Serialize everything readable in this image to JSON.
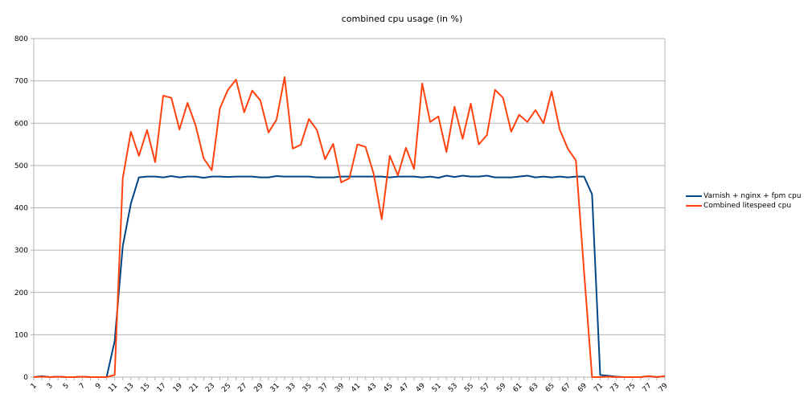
{
  "chart_data": {
    "type": "line",
    "title": "combined cpu usage (in %)",
    "xlabel": "",
    "ylabel": "",
    "ylim": [
      0,
      800
    ],
    "yticks": [
      0,
      100,
      200,
      300,
      400,
      500,
      600,
      700,
      800
    ],
    "grid": true,
    "legend_position": "right",
    "x": [
      1,
      2,
      3,
      4,
      5,
      6,
      7,
      8,
      9,
      10,
      11,
      12,
      13,
      14,
      15,
      16,
      17,
      18,
      19,
      20,
      21,
      22,
      23,
      24,
      25,
      26,
      27,
      28,
      29,
      30,
      31,
      32,
      33,
      34,
      35,
      36,
      37,
      38,
      39,
      40,
      41,
      42,
      43,
      44,
      45,
      46,
      47,
      48,
      49,
      50,
      51,
      52,
      53,
      54,
      55,
      56,
      57,
      58,
      59,
      60,
      61,
      62,
      63,
      64,
      65,
      66,
      67,
      68,
      69,
      70,
      71,
      72,
      73,
      74,
      75,
      76,
      77,
      78,
      79
    ],
    "xtick_labels": [
      "1",
      "3",
      "5",
      "7",
      "9",
      "11",
      "13",
      "15",
      "17",
      "19",
      "21",
      "23",
      "25",
      "27",
      "29",
      "31",
      "33",
      "35",
      "37",
      "39",
      "41",
      "43",
      "45",
      "47",
      "49",
      "51",
      "53",
      "55",
      "57",
      "59",
      "61",
      "63",
      "65",
      "67",
      "69",
      "71",
      "73",
      "75",
      "77",
      "79"
    ],
    "series": [
      {
        "name": "Varnish + nginx + fpm cpu",
        "color": "#004586",
        "values": [
          0,
          2,
          0,
          1,
          0,
          0,
          1,
          0,
          0,
          0,
          85,
          310,
          410,
          472,
          474,
          474,
          472,
          475,
          472,
          474,
          474,
          471,
          474,
          474,
          473,
          474,
          474,
          474,
          472,
          472,
          475,
          474,
          474,
          474,
          474,
          472,
          472,
          472,
          474,
          474,
          474,
          474,
          474,
          474,
          472,
          474,
          474,
          474,
          472,
          474,
          471,
          476,
          473,
          476,
          474,
          474,
          476,
          472,
          472,
          472,
          474,
          476,
          472,
          474,
          472,
          474,
          472,
          474,
          474,
          432,
          5,
          3,
          1,
          0,
          0,
          0,
          2,
          0,
          2
        ]
      },
      {
        "name": "Combined litespeed cpu",
        "color": "#ff420e",
        "values": [
          0,
          1,
          0,
          1,
          0,
          0,
          1,
          0,
          0,
          0,
          5,
          470,
          580,
          523,
          584,
          508,
          665,
          660,
          585,
          648,
          595,
          517,
          489,
          635,
          679,
          703,
          626,
          677,
          654,
          578,
          608,
          709,
          540,
          549,
          610,
          584,
          515,
          551,
          460,
          470,
          550,
          544,
          481,
          373,
          523,
          477,
          542,
          492,
          694,
          603,
          616,
          532,
          639,
          563,
          646,
          550,
          572,
          679,
          660,
          580,
          620,
          603,
          631,
          600,
          675,
          585,
          540,
          512,
          250,
          0,
          0,
          1,
          0,
          0,
          0,
          0,
          2,
          0,
          2
        ]
      }
    ]
  },
  "legend": {
    "items": [
      {
        "label": "Varnish + nginx + fpm cpu",
        "color": "#004586"
      },
      {
        "label": "Combined litespeed cpu",
        "color": "#ff420e"
      }
    ]
  }
}
